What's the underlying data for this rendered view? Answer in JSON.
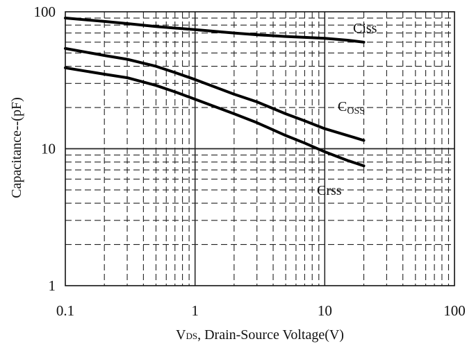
{
  "chart_data": {
    "type": "line",
    "x_scale": "log",
    "y_scale": "log",
    "xlim": [
      0.1,
      100
    ],
    "ylim": [
      1,
      100
    ],
    "grid": true,
    "xlabel_main": "V",
    "xlabel_sub": "DS",
    "xlabel_rest": ", Drain-Source Voltage(V)",
    "ylabel": "Capacitance--(pF)",
    "x_ticks": [
      "0.1",
      "1",
      "10",
      "100"
    ],
    "y_ticks": [
      "1",
      "10",
      "100"
    ],
    "series": [
      {
        "name": "Ciss",
        "label_main": "Ciss",
        "label_sub": "",
        "x": [
          0.1,
          0.2,
          0.3,
          0.5,
          0.7,
          1,
          2,
          3,
          5,
          7,
          10,
          15,
          20
        ],
        "y": [
          90,
          85,
          82,
          78,
          76,
          74,
          70,
          68,
          66,
          65,
          64,
          62,
          60
        ]
      },
      {
        "name": "Coss",
        "label_main": "C",
        "label_sub": "OSS",
        "x": [
          0.1,
          0.2,
          0.3,
          0.5,
          0.7,
          1,
          2,
          3,
          5,
          7,
          10,
          15,
          20
        ],
        "y": [
          54,
          48,
          45,
          40,
          36,
          32,
          25,
          22,
          18,
          16,
          14,
          12.5,
          11.5
        ]
      },
      {
        "name": "Crss",
        "label_main": "Crss",
        "label_sub": "",
        "x": [
          0.1,
          0.2,
          0.3,
          0.5,
          0.7,
          1,
          2,
          3,
          5,
          7,
          10,
          15,
          20
        ],
        "y": [
          39,
          35,
          33,
          29,
          26,
          23,
          18,
          15.5,
          12.5,
          11,
          9.5,
          8.2,
          7.5
        ]
      }
    ]
  }
}
